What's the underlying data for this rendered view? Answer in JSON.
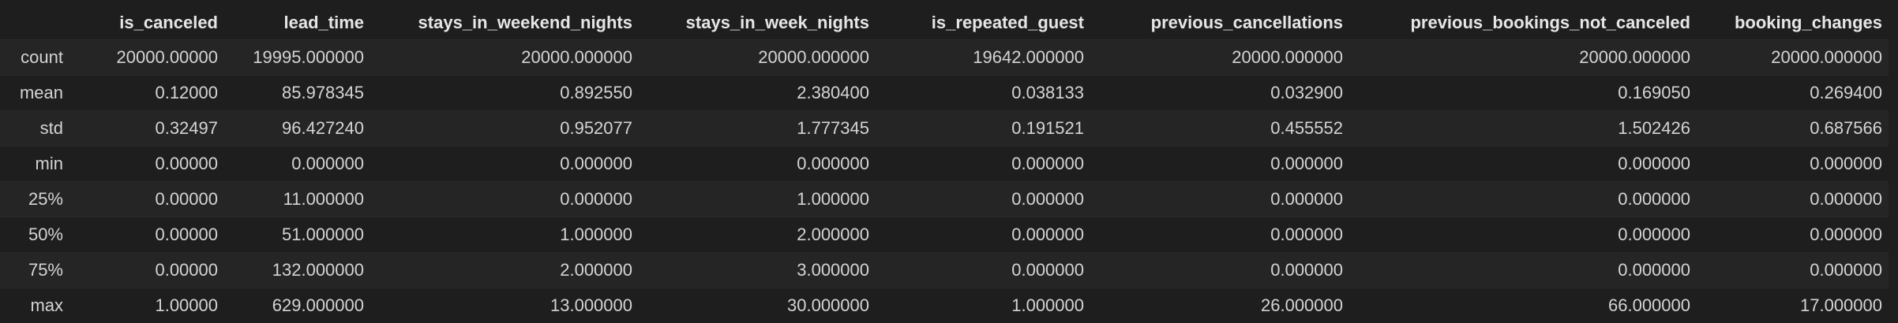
{
  "table": {
    "columns": [
      "is_canceled",
      "lead_time",
      "stays_in_weekend_nights",
      "stays_in_week_nights",
      "is_repeated_guest",
      "previous_cancellations",
      "previous_bookings_not_canceled",
      "booking_changes"
    ],
    "rows": [
      {
        "label": "count",
        "values": [
          "20000.00000",
          "19995.000000",
          "20000.000000",
          "20000.000000",
          "19642.000000",
          "20000.000000",
          "20000.000000",
          "20000.000000"
        ]
      },
      {
        "label": "mean",
        "values": [
          "0.12000",
          "85.978345",
          "0.892550",
          "2.380400",
          "0.038133",
          "0.032900",
          "0.169050",
          "0.269400"
        ]
      },
      {
        "label": "std",
        "values": [
          "0.32497",
          "96.427240",
          "0.952077",
          "1.777345",
          "0.191521",
          "0.455552",
          "1.502426",
          "0.687566"
        ]
      },
      {
        "label": "min",
        "values": [
          "0.00000",
          "0.000000",
          "0.000000",
          "0.000000",
          "0.000000",
          "0.000000",
          "0.000000",
          "0.000000"
        ]
      },
      {
        "label": "25%",
        "values": [
          "0.00000",
          "11.000000",
          "0.000000",
          "1.000000",
          "0.000000",
          "0.000000",
          "0.000000",
          "0.000000"
        ]
      },
      {
        "label": "50%",
        "values": [
          "0.00000",
          "51.000000",
          "1.000000",
          "2.000000",
          "0.000000",
          "0.000000",
          "0.000000",
          "0.000000"
        ]
      },
      {
        "label": "75%",
        "values": [
          "0.00000",
          "132.000000",
          "2.000000",
          "3.000000",
          "0.000000",
          "0.000000",
          "0.000000",
          "0.000000"
        ]
      },
      {
        "label": "max",
        "values": [
          "1.00000",
          "629.000000",
          "13.000000",
          "30.000000",
          "1.000000",
          "26.000000",
          "66.000000",
          "17.000000"
        ]
      }
    ]
  },
  "colors": {
    "background": "#1e1e1e",
    "stripe": "#252526",
    "text": "#d4d4d4",
    "header_text": "#e6e6e6"
  }
}
